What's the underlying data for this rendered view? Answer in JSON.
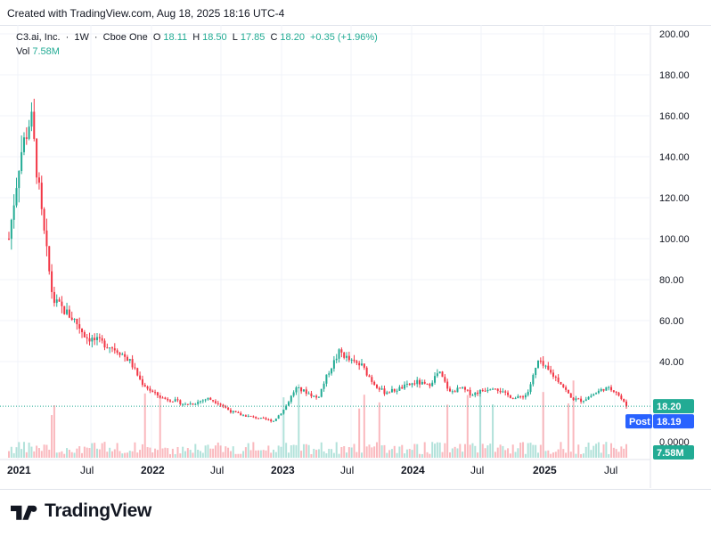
{
  "header": {
    "created_text": "Created with TradingView.com, Aug 18, 2025 18:16 UTC-4"
  },
  "legend": {
    "symbol": "C3.ai, Inc.",
    "interval": "1W",
    "exchange": "Cboe One",
    "open_label": "O",
    "open": "18.11",
    "high_label": "H",
    "high": "18.50",
    "low_label": "L",
    "low": "17.85",
    "close_label": "C",
    "close": "18.20",
    "change": "+0.35 (+1.96%)",
    "vol_label": "Vol",
    "vol_value": "7.58M"
  },
  "colors": {
    "up": "#22ab94",
    "down": "#f23645",
    "post": "#2962ff",
    "axis_text": "#131722",
    "grid": "#f0f3fa"
  },
  "chart_data": {
    "type": "candlestick",
    "interval": "1W",
    "y_ticks": [
      "200.00",
      "180.00",
      "160.00",
      "140.00",
      "120.00",
      "100.00",
      "80.00",
      "60.00",
      "40.00"
    ],
    "ylim": [
      0,
      200
    ],
    "x_ticks": [
      "2021",
      "Jul",
      "2022",
      "Jul",
      "2023",
      "Jul",
      "2024",
      "Jul",
      "2025",
      "Jul"
    ],
    "last_price_label": "18.20",
    "post_label": "Post",
    "post_price": "18.19",
    "volume_zero_label": "0.0000",
    "volume_label": "7.58M",
    "series": [
      {
        "name": "Price",
        "x": [
          "2020-12",
          "2021-01",
          "2021-02",
          "2021-03",
          "2021-04",
          "2021-05",
          "2021-06",
          "2021-07",
          "2021-08",
          "2021-09",
          "2021-10",
          "2021-11",
          "2021-12",
          "2022-01",
          "2022-02",
          "2022-03",
          "2022-04",
          "2022-05",
          "2022-06",
          "2022-07",
          "2022-08",
          "2022-09",
          "2022-10",
          "2022-11",
          "2022-12",
          "2023-01",
          "2023-02",
          "2023-03",
          "2023-04",
          "2023-05",
          "2023-06",
          "2023-07",
          "2023-08",
          "2023-09",
          "2023-10",
          "2023-11",
          "2023-12",
          "2024-01",
          "2024-02",
          "2024-03",
          "2024-04",
          "2024-05",
          "2024-06",
          "2024-07",
          "2024-08",
          "2024-09",
          "2024-10",
          "2024-11",
          "2024-12",
          "2025-01",
          "2025-02",
          "2025-03",
          "2025-04",
          "2025-05",
          "2025-06",
          "2025-07",
          "2025-08"
        ],
        "y": [
          100,
          140,
          160,
          110,
          70,
          65,
          60,
          52,
          50,
          48,
          45,
          40,
          30,
          25,
          22,
          21,
          19,
          20,
          22,
          20,
          16,
          14,
          13,
          12,
          11,
          17,
          27,
          25,
          22,
          35,
          45,
          40,
          38,
          30,
          25,
          26,
          28,
          30,
          28,
          35,
          25,
          27,
          24,
          26,
          28,
          24,
          22,
          24,
          40,
          35,
          30,
          22,
          21,
          24,
          27,
          26,
          18.2
        ]
      }
    ]
  }
}
